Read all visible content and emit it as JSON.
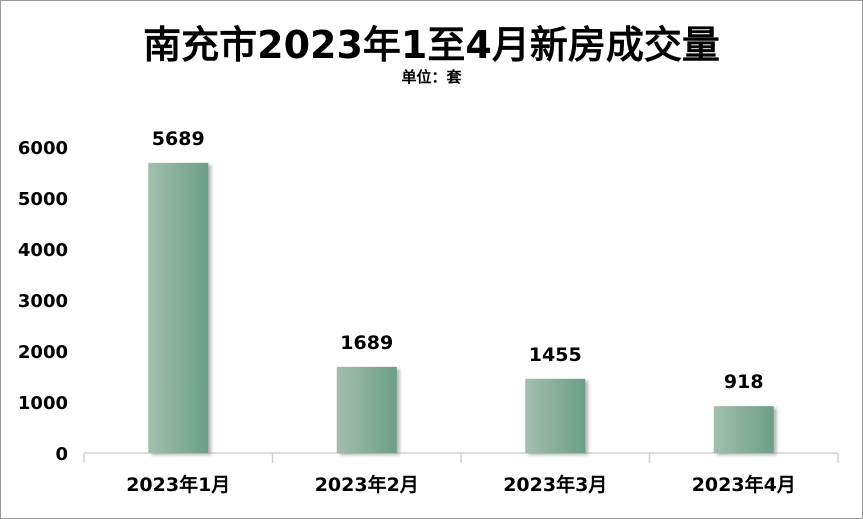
{
  "chart_data": {
    "type": "bar",
    "title": "南充市2023年1至4月新房成交量",
    "subtitle": "单位：套",
    "categories": [
      "2023年1月",
      "2023年2月",
      "2023年3月",
      "2023年4月"
    ],
    "values": [
      5689,
      1689,
      1455,
      918
    ],
    "ylim": [
      0,
      6000
    ],
    "yticks": [
      0,
      1000,
      2000,
      3000,
      4000,
      5000,
      6000
    ],
    "grid": false,
    "legend": "none",
    "colors": {
      "bar_light": "#a3bfae",
      "bar_dark": "#6c9e88",
      "bar_shadow": "#bdbdbd",
      "axis": "#d0d0d0"
    }
  }
}
